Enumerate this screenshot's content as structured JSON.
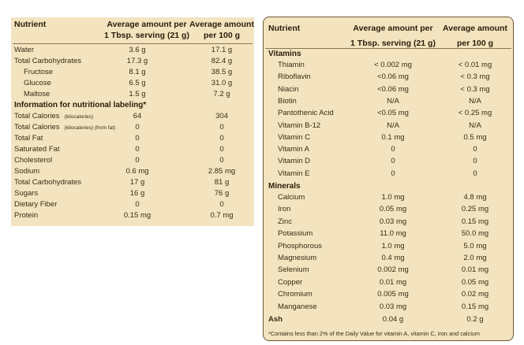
{
  "left_table": {
    "header": {
      "nutrient": "Nutrient",
      "col1_line1": "Average amount per",
      "col1_line2": "1 Tbsp. serving (21 g)",
      "col2_line1": "Average amount",
      "col2_line2": "per 100 g"
    },
    "rows": [
      {
        "label": "Water",
        "v1": "3.6 g",
        "v2": "17.1 g",
        "indent": false
      },
      {
        "label": "Total Carbohydrates",
        "v1": "17.3 g",
        "v2": "82.4 g",
        "indent": false
      },
      {
        "label": "Fructose",
        "v1": "8.1 g",
        "v2": "38.5 g",
        "indent": true
      },
      {
        "label": "Glucose",
        "v1": "6.5 g",
        "v2": "31.0 g",
        "indent": true
      },
      {
        "label": "Maltose",
        "v1": "1.5 g",
        "v2": "7.2 g",
        "indent": true
      }
    ],
    "section": "Information for nutritional labeling*",
    "rows2": [
      {
        "label": "Total Calories",
        "sub": "(kilocalories)",
        "v1": "64",
        "v2": "304"
      },
      {
        "label": "Total Calories",
        "sub": "(kilocalories) (from fat)",
        "v1": "0",
        "v2": "0"
      },
      {
        "label": "Total Fat",
        "sub": "",
        "v1": "0",
        "v2": "0"
      },
      {
        "label": "Saturated Fat",
        "sub": "",
        "v1": "0",
        "v2": "0"
      },
      {
        "label": "Cholesterol",
        "sub": "",
        "v1": "0",
        "v2": "0"
      },
      {
        "label": "Sodium",
        "sub": "",
        "v1": "0.6 mg",
        "v2": "2.85 mg"
      },
      {
        "label": "Total Carbohydrates",
        "sub": "",
        "v1": "17 g",
        "v2": "81 g"
      },
      {
        "label": "Sugars",
        "sub": "",
        "v1": "16 g",
        "v2": "76 g"
      },
      {
        "label": "Dietary Fiber",
        "sub": "",
        "v1": "0",
        "v2": "0"
      },
      {
        "label": "Protein",
        "sub": "",
        "v1": "0.15 mg",
        "v2": "0.7 mg"
      }
    ]
  },
  "right_table": {
    "header": {
      "nutrient": "Nutrient",
      "col1_line1": "Average amount per",
      "col1_line2": "1 Tbsp. serving (21 g)",
      "col2_line1": "Average amount",
      "col2_line2": "per 100 g"
    },
    "vitamins_title": "Vitamins",
    "vitamins": [
      {
        "label": "Thiamin",
        "v1": "< 0.002 mg",
        "v2": "< 0.01 mg"
      },
      {
        "label": "Riboflavin",
        "v1": "<0.06 mg",
        "v2": "< 0.3 mg"
      },
      {
        "label": "Niacin",
        "v1": "<0.06 mg",
        "v2": "< 0.3 mg"
      },
      {
        "label": "Biotin",
        "v1": "N/A",
        "v2": "N/A"
      },
      {
        "label": "Pantothenic Acid",
        "v1": "<0.05 mg",
        "v2": "< 0.25 mg"
      },
      {
        "label": "Vitamin B-12",
        "v1": "N/A",
        "v2": "N/A"
      },
      {
        "label": "Vitamin C",
        "v1": "0.1 mg",
        "v2": "0.5 mg"
      },
      {
        "label": "Vitamin A",
        "v1": "0",
        "v2": "0"
      },
      {
        "label": "Vitamin D",
        "v1": "0",
        "v2": "0"
      },
      {
        "label": "Vitamin E",
        "v1": "0",
        "v2": "0"
      }
    ],
    "minerals_title": "Minerals",
    "minerals": [
      {
        "label": "Calcium",
        "v1": "1.0 mg",
        "v2": "4.8 mg"
      },
      {
        "label": "Iron",
        "v1": "0.05 mg",
        "v2": "0.25 mg"
      },
      {
        "label": "Zinc",
        "v1": "0.03 mg",
        "v2": "0.15 mg"
      },
      {
        "label": "Potassium",
        "v1": "11.0 mg",
        "v2": "50.0 mg"
      },
      {
        "label": "Phosphorous",
        "v1": "1.0 mg",
        "v2": "5.0 mg"
      },
      {
        "label": "Magnesium",
        "v1": "0.4 mg",
        "v2": "2.0 mg"
      },
      {
        "label": "Selenium",
        "v1": "0.002 mg",
        "v2": "0.01 mg"
      },
      {
        "label": "Copper",
        "v1": "0.01 mg",
        "v2": "0.05 mg"
      },
      {
        "label": "Chromium",
        "v1": "0.005 mg",
        "v2": "0.02 mg"
      },
      {
        "label": "Manganese",
        "v1": "0.03 mg",
        "v2": "0.15 mg"
      }
    ],
    "ash": {
      "label": "Ash",
      "v1": "0.04 g",
      "v2": "0.2 g"
    },
    "footnote": "*Contains less than 2% of the Daily Value for vitamin A, vitamin C, iron and calcium"
  }
}
